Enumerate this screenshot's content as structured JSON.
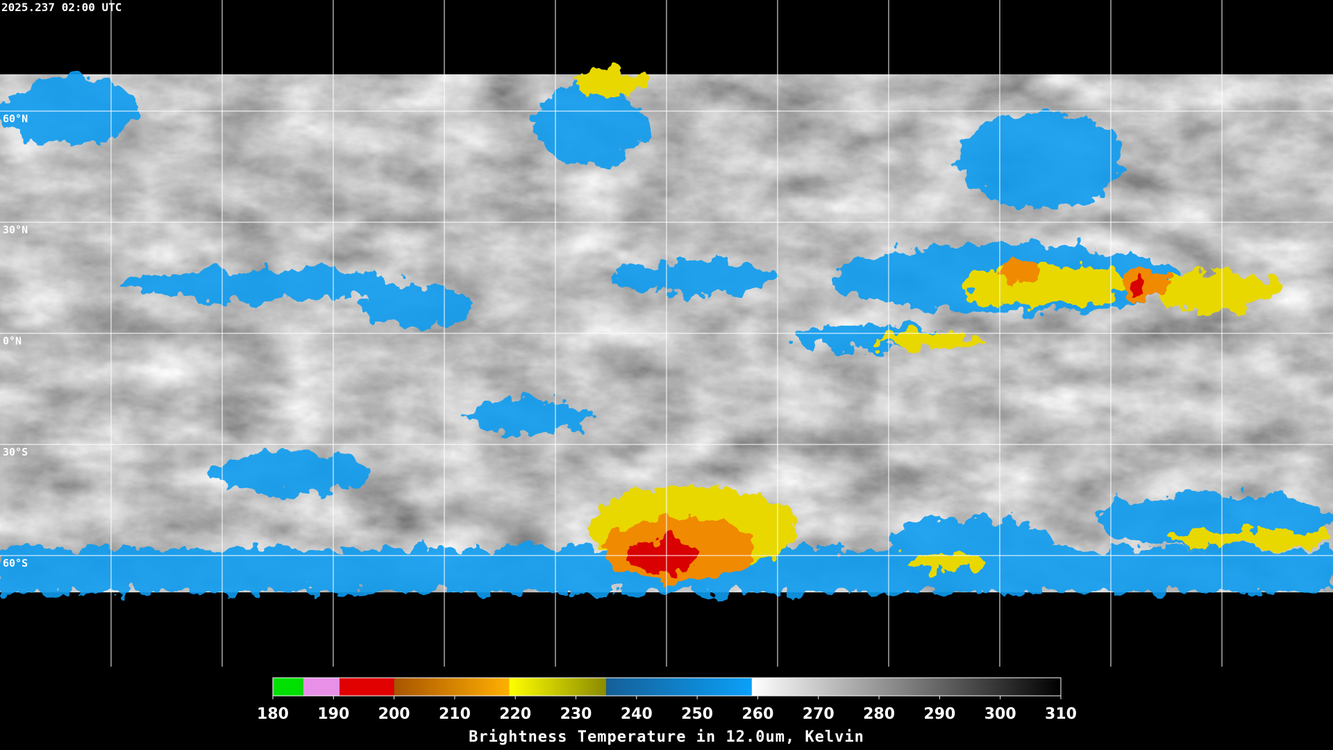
{
  "header": {
    "timestamp": "2025.237 02:00 UTC"
  },
  "map": {
    "lat_range": [
      90,
      -90
    ],
    "parallels": [
      {
        "value": 60,
        "label": "60°N"
      },
      {
        "value": 30,
        "label": "30°N"
      },
      {
        "value": 0,
        "label": "0°N"
      },
      {
        "value": -30,
        "label": "30°S"
      },
      {
        "value": -60,
        "label": "60°S"
      }
    ]
  },
  "colorbar": {
    "title": "Brightness Temperature in 12.0um, Kelvin",
    "range": [
      180,
      310
    ],
    "ticks": [
      180,
      190,
      200,
      210,
      220,
      230,
      240,
      250,
      260,
      270,
      280,
      290,
      300,
      310
    ],
    "segments": [
      {
        "from": 180,
        "to": 185,
        "colors": [
          "#00e000",
          "#00e000"
        ]
      },
      {
        "from": 185,
        "to": 191,
        "colors": [
          "#e890e8",
          "#e890e8"
        ]
      },
      {
        "from": 191,
        "to": 200,
        "colors": [
          "#e00000",
          "#e00000"
        ]
      },
      {
        "from": 200,
        "to": 219,
        "colors": [
          "#a85400",
          "#ffb000"
        ]
      },
      {
        "from": 219,
        "to": 235,
        "colors": [
          "#ffff00",
          "#8a8a00"
        ]
      },
      {
        "from": 235,
        "to": 259,
        "colors": [
          "#155f98",
          "#0aa0f8"
        ]
      },
      {
        "from": 259,
        "to": 310,
        "colors": [
          "#ffffff",
          "#000000"
        ]
      }
    ]
  }
}
